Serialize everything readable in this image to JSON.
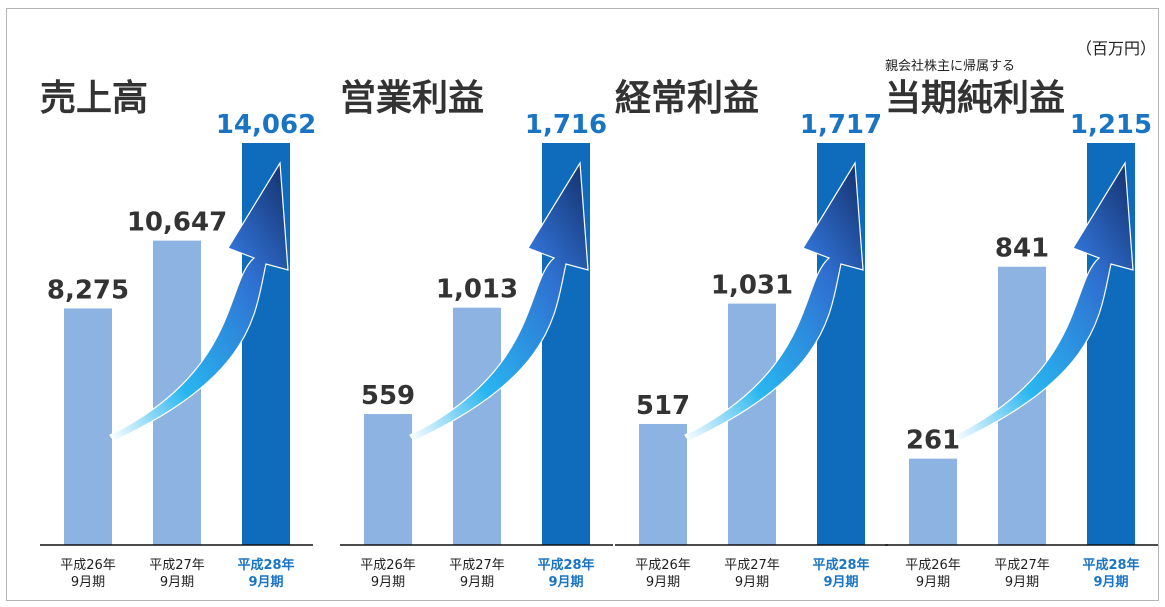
{
  "unit_label": "（百万円）",
  "colors": {
    "past_bar": "#8db3e2",
    "current_bar": "#0f6cbd",
    "highlight_text": "#1a74c4",
    "text": "#333333"
  },
  "chart_data": [
    {
      "type": "bar",
      "title": "売上高",
      "note": "",
      "categories": [
        [
          "平成26年",
          "9月期"
        ],
        [
          "平成27年",
          "9月期"
        ],
        [
          "平成28年",
          "9月期"
        ]
      ],
      "values": [
        8275,
        10647,
        14062
      ],
      "value_labels": [
        "8,275",
        "10,647",
        "14,062"
      ],
      "highlight_index": 2,
      "ylim": [
        0,
        14062
      ]
    },
    {
      "type": "bar",
      "title": "営業利益",
      "note": "",
      "categories": [
        [
          "平成26年",
          "9月期"
        ],
        [
          "平成27年",
          "9月期"
        ],
        [
          "平成28年",
          "9月期"
        ]
      ],
      "values": [
        559,
        1013,
        1716
      ],
      "value_labels": [
        "559",
        "1,013",
        "1,716"
      ],
      "highlight_index": 2,
      "ylim": [
        0,
        1716
      ]
    },
    {
      "type": "bar",
      "title": "経常利益",
      "note": "",
      "categories": [
        [
          "平成26年",
          "9月期"
        ],
        [
          "平成27年",
          "9月期"
        ],
        [
          "平成28年",
          "9月期"
        ]
      ],
      "values": [
        517,
        1031,
        1717
      ],
      "value_labels": [
        "517",
        "1,031",
        "1,717"
      ],
      "highlight_index": 2,
      "ylim": [
        0,
        1717
      ]
    },
    {
      "type": "bar",
      "title": "当期純利益",
      "note": "親会社株主に帰属する",
      "categories": [
        [
          "平成26年",
          "9月期"
        ],
        [
          "平成27年",
          "9月期"
        ],
        [
          "平成28年",
          "9月期"
        ]
      ],
      "values": [
        261,
        841,
        1215
      ],
      "value_labels": [
        "261",
        "841",
        "1,215"
      ],
      "highlight_index": 2,
      "ylim": [
        0,
        1215
      ]
    }
  ]
}
